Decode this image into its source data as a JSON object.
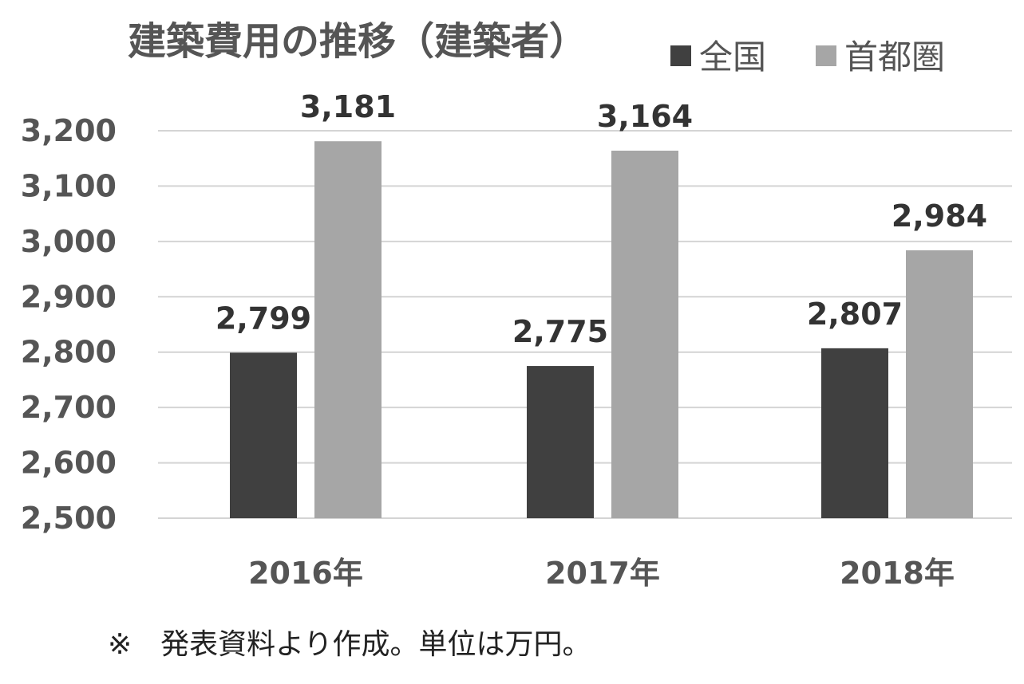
{
  "chart_data": {
    "type": "bar",
    "title": "建築費用の推移（建築者）",
    "categories": [
      "2016年",
      "2017年",
      "2018年"
    ],
    "series": [
      {
        "name": "全国",
        "values": [
          2799,
          2775,
          2807
        ],
        "color": "#404040"
      },
      {
        "name": "首都圏",
        "values": [
          3181,
          3164,
          2984
        ],
        "color": "#a6a6a6"
      }
    ],
    "data_labels": [
      [
        "2,799",
        "2,775",
        "2,807"
      ],
      [
        "3,181",
        "3,164",
        "2,984"
      ]
    ],
    "ylim": [
      2500,
      3200
    ],
    "yticks": [
      "2,500",
      "2,600",
      "2,700",
      "2,800",
      "2,900",
      "3,000",
      "3,100",
      "3,200"
    ],
    "ytick_values": [
      2500,
      2600,
      2700,
      2800,
      2900,
      3000,
      3100,
      3200
    ],
    "grid": true,
    "legend_position": "top-right",
    "xlabel": "",
    "ylabel": ""
  },
  "note": "※　発表資料より作成。単位は万円。"
}
